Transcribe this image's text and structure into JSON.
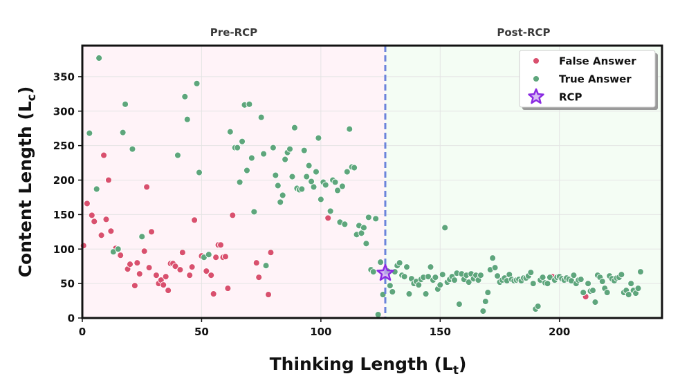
{
  "chart_data": {
    "type": "scatter",
    "title": "",
    "regions": [
      {
        "label": "Pre-RCP",
        "x_range": [
          0,
          127
        ],
        "color": "#fff3f8"
      },
      {
        "label": "Post-RCP",
        "x_range": [
          127,
          243
        ],
        "color": "#f4fdf4"
      }
    ],
    "xlabel": {
      "main": "Thinking Length (L",
      "sub": "t",
      "close": ")"
    },
    "ylabel": {
      "main": "Content Length (L",
      "sub": "c",
      "close": ")"
    },
    "xlim": [
      0,
      243
    ],
    "ylim": [
      0,
      395
    ],
    "xticks": [
      0,
      50,
      100,
      150,
      200
    ],
    "yticks": [
      0,
      50,
      100,
      150,
      200,
      250,
      300,
      350
    ],
    "rcp_x": 127,
    "legend": [
      {
        "label": "False Answer",
        "marker": "circle",
        "color": "#d9506e"
      },
      {
        "label": "True Answer",
        "marker": "circle",
        "color": "#5ea67c"
      },
      {
        "label": "RCP",
        "marker": "star",
        "color": "#8a2be2"
      }
    ],
    "rcp_point": {
      "x": 127,
      "y": 65
    },
    "series": [
      {
        "name": "False Answer",
        "color": "#d9506e",
        "points": [
          [
            0.5,
            105
          ],
          [
            2,
            166
          ],
          [
            4,
            149
          ],
          [
            5,
            140
          ],
          [
            8,
            120
          ],
          [
            9,
            236
          ],
          [
            10,
            143
          ],
          [
            11,
            200
          ],
          [
            12,
            126
          ],
          [
            14,
            101
          ],
          [
            16,
            91
          ],
          [
            19,
            71
          ],
          [
            20,
            78
          ],
          [
            22,
            47
          ],
          [
            23,
            80
          ],
          [
            24,
            64
          ],
          [
            26,
            97
          ],
          [
            27,
            190
          ],
          [
            28,
            73
          ],
          [
            29,
            125
          ],
          [
            31,
            62
          ],
          [
            32,
            50
          ],
          [
            33,
            55
          ],
          [
            34,
            48
          ],
          [
            35,
            60
          ],
          [
            36,
            40
          ],
          [
            37,
            79
          ],
          [
            38,
            79
          ],
          [
            39,
            75
          ],
          [
            41,
            70
          ],
          [
            42,
            95
          ],
          [
            45,
            62
          ],
          [
            46,
            74
          ],
          [
            47,
            142
          ],
          [
            50,
            90
          ],
          [
            52,
            68
          ],
          [
            54,
            62
          ],
          [
            55,
            35
          ],
          [
            56,
            88
          ],
          [
            57,
            106
          ],
          [
            58,
            106
          ],
          [
            59,
            88
          ],
          [
            60,
            89
          ],
          [
            61,
            43
          ],
          [
            63,
            149
          ],
          [
            73,
            80
          ],
          [
            74,
            59
          ],
          [
            78,
            34
          ],
          [
            79,
            95
          ],
          [
            103,
            145
          ],
          [
            197,
            60
          ],
          [
            211,
            31
          ]
        ]
      },
      {
        "name": "True Answer",
        "color": "#5ea67c",
        "points": [
          [
            3,
            268
          ],
          [
            6,
            187
          ],
          [
            7,
            377
          ],
          [
            13,
            96
          ],
          [
            15,
            100
          ],
          [
            17,
            269
          ],
          [
            18,
            310
          ],
          [
            21,
            245
          ],
          [
            25,
            118
          ],
          [
            40,
            236
          ],
          [
            43,
            321
          ],
          [
            44,
            288
          ],
          [
            48,
            340
          ],
          [
            49,
            211
          ],
          [
            51,
            88
          ],
          [
            53,
            92
          ],
          [
            62,
            270
          ],
          [
            64,
            247
          ],
          [
            65,
            247
          ],
          [
            66,
            197
          ],
          [
            67,
            256
          ],
          [
            68,
            309
          ],
          [
            69,
            214
          ],
          [
            70,
            310
          ],
          [
            71,
            232
          ],
          [
            72,
            154
          ],
          [
            75,
            291
          ],
          [
            76,
            238
          ],
          [
            77,
            76
          ],
          [
            80,
            247
          ],
          [
            81,
            207
          ],
          [
            82,
            192
          ],
          [
            83,
            168
          ],
          [
            84,
            178
          ],
          [
            85,
            230
          ],
          [
            86,
            240
          ],
          [
            87,
            245
          ],
          [
            88,
            205
          ],
          [
            89,
            276
          ],
          [
            90,
            188
          ],
          [
            91,
            186
          ],
          [
            92,
            187
          ],
          [
            93,
            243
          ],
          [
            94,
            205
          ],
          [
            95,
            221
          ],
          [
            96,
            198
          ],
          [
            97,
            190
          ],
          [
            98,
            212
          ],
          [
            99,
            261
          ],
          [
            100,
            172
          ],
          [
            101,
            197
          ],
          [
            102,
            193
          ],
          [
            104,
            155
          ],
          [
            105,
            200
          ],
          [
            106,
            197
          ],
          [
            107,
            185
          ],
          [
            108,
            139
          ],
          [
            109,
            191
          ],
          [
            110,
            136
          ],
          [
            111,
            212
          ],
          [
            112,
            274
          ],
          [
            113,
            219
          ],
          [
            114,
            218
          ],
          [
            115,
            121
          ],
          [
            116,
            134
          ],
          [
            117,
            123
          ],
          [
            118,
            131
          ],
          [
            119,
            108
          ],
          [
            120,
            146
          ],
          [
            121,
            70
          ],
          [
            122,
            67
          ],
          [
            123,
            144
          ],
          [
            124,
            5
          ],
          [
            125,
            81
          ],
          [
            126,
            34
          ],
          [
            128,
            68
          ],
          [
            129,
            47
          ],
          [
            130,
            38
          ],
          [
            131,
            67
          ],
          [
            132,
            76
          ],
          [
            133,
            80
          ],
          [
            134,
            62
          ],
          [
            135,
            60
          ],
          [
            136,
            74
          ],
          [
            137,
            35
          ],
          [
            138,
            57
          ],
          [
            139,
            50
          ],
          [
            140,
            53
          ],
          [
            141,
            48
          ],
          [
            142,
            56
          ],
          [
            143,
            59
          ],
          [
            144,
            35
          ],
          [
            145,
            60
          ],
          [
            146,
            74
          ],
          [
            147,
            55
          ],
          [
            148,
            59
          ],
          [
            149,
            42
          ],
          [
            150,
            48
          ],
          [
            151,
            63
          ],
          [
            152,
            131
          ],
          [
            153,
            52
          ],
          [
            154,
            56
          ],
          [
            155,
            60
          ],
          [
            156,
            55
          ],
          [
            157,
            65
          ],
          [
            158,
            20
          ],
          [
            159,
            64
          ],
          [
            160,
            56
          ],
          [
            161,
            62
          ],
          [
            162,
            52
          ],
          [
            163,
            64
          ],
          [
            164,
            57
          ],
          [
            165,
            62
          ],
          [
            166,
            55
          ],
          [
            167,
            62
          ],
          [
            168,
            10
          ],
          [
            169,
            24
          ],
          [
            170,
            37
          ],
          [
            171,
            70
          ],
          [
            172,
            87
          ],
          [
            173,
            73
          ],
          [
            174,
            61
          ],
          [
            175,
            52
          ],
          [
            176,
            55
          ],
          [
            177,
            58
          ],
          [
            178,
            54
          ],
          [
            179,
            63
          ],
          [
            180,
            56
          ],
          [
            181,
            54
          ],
          [
            182,
            55
          ],
          [
            183,
            56
          ],
          [
            184,
            54
          ],
          [
            185,
            58
          ],
          [
            186,
            58
          ],
          [
            187,
            61
          ],
          [
            188,
            66
          ],
          [
            189,
            50
          ],
          [
            190,
            13
          ],
          [
            191,
            17
          ],
          [
            192,
            55
          ],
          [
            193,
            59
          ],
          [
            194,
            51
          ],
          [
            195,
            50
          ],
          [
            196,
            59
          ],
          [
            198,
            55
          ],
          [
            199,
            59
          ],
          [
            200,
            60
          ],
          [
            201,
            57
          ],
          [
            202,
            55
          ],
          [
            203,
            58
          ],
          [
            204,
            56
          ],
          [
            205,
            54
          ],
          [
            206,
            62
          ],
          [
            207,
            50
          ],
          [
            208,
            55
          ],
          [
            209,
            56
          ],
          [
            210,
            37
          ],
          [
            212,
            50
          ],
          [
            213,
            39
          ],
          [
            214,
            40
          ],
          [
            215,
            23
          ],
          [
            216,
            62
          ],
          [
            217,
            59
          ],
          [
            218,
            53
          ],
          [
            219,
            43
          ],
          [
            220,
            37
          ],
          [
            221,
            61
          ],
          [
            222,
            57
          ],
          [
            223,
            54
          ],
          [
            224,
            58
          ],
          [
            225,
            59
          ],
          [
            226,
            63
          ],
          [
            227,
            37
          ],
          [
            228,
            40
          ],
          [
            229,
            34
          ],
          [
            230,
            50
          ],
          [
            231,
            40
          ],
          [
            232,
            36
          ],
          [
            233,
            43
          ],
          [
            234,
            67
          ]
        ]
      }
    ]
  }
}
